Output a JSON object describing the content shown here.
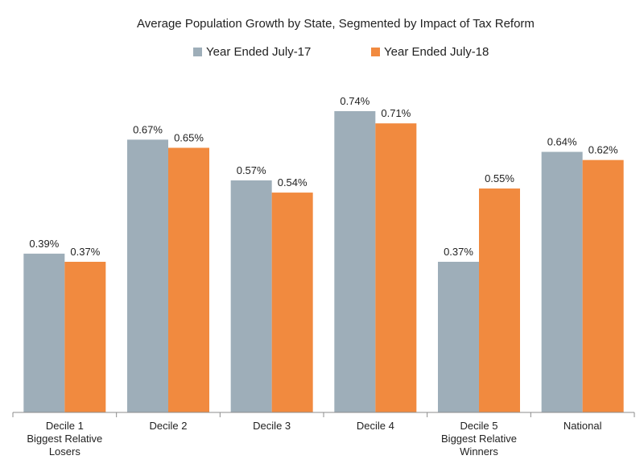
{
  "chart_data": {
    "type": "bar",
    "title": "Average Population Growth by State, Segmented by Impact of Tax Reform",
    "xlabel": "",
    "ylabel": "",
    "ylim": [
      0,
      0.8
    ],
    "grid": false,
    "legend_position": "top-center",
    "categories": [
      [
        "Decile 1",
        "Biggest Relative",
        "Losers"
      ],
      [
        "Decile 2"
      ],
      [
        "Decile 3"
      ],
      [
        "Decile 4"
      ],
      [
        "Decile 5",
        "Biggest Relative",
        "Winners"
      ],
      [
        "National"
      ]
    ],
    "series": [
      {
        "name": "Year Ended July-17",
        "color": "#9eaeb9",
        "values": [
          0.39,
          0.67,
          0.57,
          0.74,
          0.37,
          0.64
        ],
        "labels": [
          "0.39%",
          "0.67%",
          "0.57%",
          "0.74%",
          "0.37%",
          "0.64%"
        ]
      },
      {
        "name": "Year Ended July-18",
        "color": "#f18a3f",
        "values": [
          0.37,
          0.65,
          0.54,
          0.71,
          0.55,
          0.62
        ],
        "labels": [
          "0.37%",
          "0.65%",
          "0.54%",
          "0.71%",
          "0.55%",
          "0.62%"
        ]
      }
    ],
    "axis_color": "#8c8c8c"
  }
}
